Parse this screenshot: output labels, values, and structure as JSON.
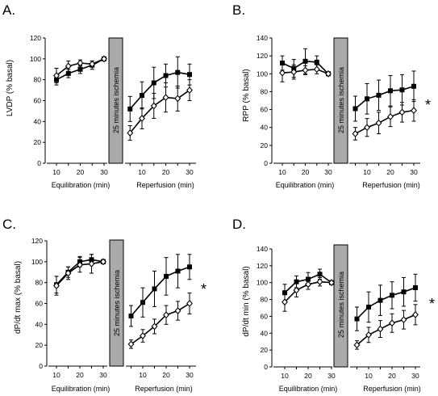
{
  "chart_data": [
    {
      "type": "line",
      "panel": "A.",
      "ylabel": "LVDP (% basal)",
      "ylim": [
        0,
        120
      ],
      "yticks": [
        0,
        20,
        40,
        60,
        80,
        100,
        120
      ],
      "ischemia_label": "25 minutes ischemia",
      "significance": "",
      "equilibration": {
        "xlabel": "Equilibration (min)",
        "xticks": [
          10,
          20,
          30
        ],
        "x": [
          10,
          15,
          20,
          25,
          30
        ],
        "series": [
          {
            "marker": "square",
            "values": [
              80,
              86,
              90,
              94,
              100
            ],
            "err": [
              5,
              4,
              4,
              4,
              1
            ]
          },
          {
            "marker": "diamond",
            "values": [
              84,
              93,
              96,
              95,
              100
            ],
            "err": [
              7,
              5,
              3,
              3,
              1
            ]
          }
        ]
      },
      "reperfusion": {
        "xlabel": "Reperfusion (min)",
        "xticks": [
          10,
          20,
          30
        ],
        "x": [
          5,
          10,
          15,
          20,
          25,
          30
        ],
        "series": [
          {
            "marker": "square",
            "values": [
              52,
              65,
              77,
              84,
              87,
              85
            ],
            "err": [
              12,
              13,
              15,
              11,
              15,
              10
            ]
          },
          {
            "marker": "diamond",
            "values": [
              29,
              43,
              55,
              63,
              62,
              70
            ],
            "err": [
              7,
              10,
              12,
              14,
              12,
              10
            ]
          }
        ]
      }
    },
    {
      "type": "line",
      "panel": "B.",
      "ylabel": "RPP (% basal)",
      "ylim": [
        0,
        140
      ],
      "yticks": [
        0,
        20,
        40,
        60,
        80,
        100,
        120,
        140
      ],
      "ischemia_label": "25 minutes ischemia",
      "significance": "*",
      "equilibration": {
        "xlabel": "Equilibration (min)",
        "xticks": [
          10,
          20,
          30
        ],
        "x": [
          10,
          15,
          20,
          25,
          30
        ],
        "series": [
          {
            "marker": "square",
            "values": [
              112,
              106,
              114,
              113,
              100
            ],
            "err": [
              8,
              10,
              14,
              7,
              1
            ]
          },
          {
            "marker": "diamond",
            "values": [
              101,
              102,
              104,
              105,
              100
            ],
            "err": [
              10,
              8,
              5,
              5,
              1
            ]
          }
        ]
      },
      "reperfusion": {
        "xlabel": "Reperfusion (min)",
        "xticks": [
          10,
          20,
          30
        ],
        "x": [
          5,
          10,
          15,
          20,
          25,
          30
        ],
        "series": [
          {
            "marker": "square",
            "values": [
              61,
              72,
              76,
              81,
              82,
              86
            ],
            "err": [
              14,
              17,
              17,
              17,
              17,
              17
            ]
          },
          {
            "marker": "diamond",
            "values": [
              33,
              40,
              45,
              52,
              57,
              59
            ],
            "err": [
              7,
              10,
              12,
              11,
              11,
              12
            ]
          }
        ]
      }
    },
    {
      "type": "line",
      "panel": "C.",
      "ylabel": "dP/dt max (% basal)",
      "ylim": [
        0,
        120
      ],
      "yticks": [
        0,
        20,
        40,
        60,
        80,
        100,
        120
      ],
      "ischemia_label": "25 minutes ischemia",
      "significance": "*",
      "equilibration": {
        "xlabel": "Equilibration (min)",
        "xticks": [
          10,
          20,
          30
        ],
        "x": [
          10,
          15,
          20,
          25,
          30
        ],
        "series": [
          {
            "marker": "square",
            "values": [
              78,
              90,
              100,
              102,
              100
            ],
            "err": [
              8,
              5,
              5,
              5,
              2
            ]
          },
          {
            "marker": "diamond",
            "values": [
              77,
              89,
              97,
              98,
              100
            ],
            "err": [
              9,
              6,
              7,
              9,
              2
            ]
          }
        ]
      },
      "reperfusion": {
        "xlabel": "Reperfusion (min)",
        "xticks": [
          10,
          20,
          30
        ],
        "x": [
          5,
          10,
          15,
          20,
          25,
          30
        ],
        "series": [
          {
            "marker": "square",
            "values": [
              48,
              61,
              74,
              86,
              91,
              95
            ],
            "err": [
              10,
              14,
              17,
              18,
              16,
              12
            ]
          },
          {
            "marker": "diamond",
            "values": [
              21,
              29,
              38,
              49,
              53,
              60
            ],
            "err": [
              4,
              6,
              7,
              9,
              9,
              10
            ]
          }
        ]
      }
    },
    {
      "type": "line",
      "panel": "D.",
      "ylabel": "dP/dt min (% basal)",
      "ylim": [
        0,
        140
      ],
      "yticks": [
        0,
        20,
        40,
        60,
        80,
        100,
        120,
        140
      ],
      "ischemia_label": "25 minutes ischemia",
      "significance": "*",
      "equilibration": {
        "xlabel": "Equilibration (min)",
        "xticks": [
          10,
          20,
          30
        ],
        "x": [
          10,
          15,
          20,
          25,
          30
        ],
        "series": [
          {
            "marker": "square",
            "values": [
              88,
              101,
              104,
              110,
              100
            ],
            "err": [
              10,
              7,
              8,
              6,
              2
            ]
          },
          {
            "marker": "diamond",
            "values": [
              77,
              91,
              98,
              101,
              100
            ],
            "err": [
              11,
              8,
              6,
              5,
              2
            ]
          }
        ]
      },
      "reperfusion": {
        "xlabel": "Reperfusion (min)",
        "xticks": [
          10,
          20,
          30
        ],
        "x": [
          5,
          10,
          15,
          20,
          25,
          30
        ],
        "series": [
          {
            "marker": "square",
            "values": [
              57,
              71,
              79,
              85,
              89,
              94
            ],
            "err": [
              14,
              18,
              18,
              16,
              17,
              16
            ]
          },
          {
            "marker": "diamond",
            "values": [
              26,
              38,
              45,
              52,
              56,
              62
            ],
            "err": [
              5,
              9,
              10,
              11,
              11,
              12
            ]
          }
        ]
      }
    }
  ]
}
